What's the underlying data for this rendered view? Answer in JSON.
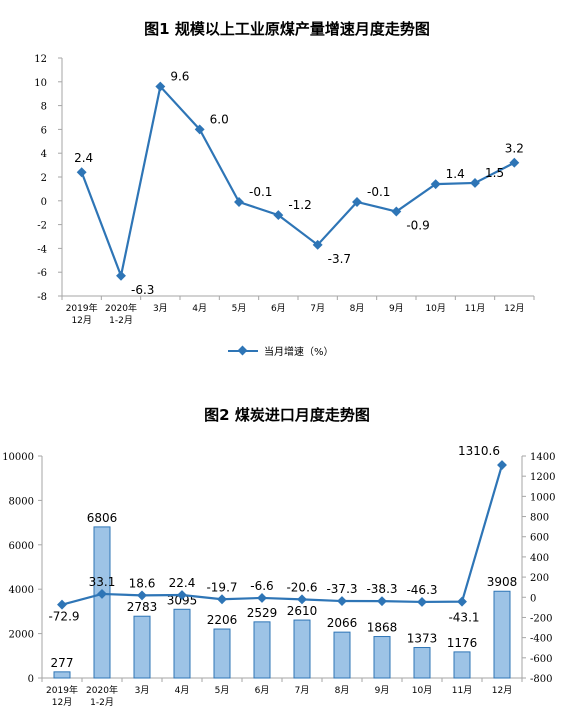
{
  "chart_data": [
    {
      "type": "line",
      "title": "图1  规模以上工业原煤产量增速月度走势图",
      "categories": [
        "2019年\n12月",
        "2020年\n1-2月",
        "3月",
        "4月",
        "5月",
        "6月",
        "7月",
        "8月",
        "9月",
        "10月",
        "11月",
        "12月"
      ],
      "series": [
        {
          "name": "当月增速（%）",
          "values": [
            2.4,
            -6.3,
            9.6,
            6.0,
            -0.1,
            -1.2,
            -3.7,
            -0.1,
            -0.9,
            1.4,
            1.5,
            3.2
          ],
          "labels": [
            "2.4",
            "-6.3",
            "9.6",
            "6.0",
            "-0.1",
            "-1.2",
            "-3.7",
            "-0.1",
            "-0.9",
            "1.4",
            "1.5",
            "3.2"
          ]
        }
      ],
      "ylim": [
        -8,
        12
      ],
      "yticks": [
        -8,
        -6,
        -4,
        -2,
        0,
        2,
        4,
        6,
        8,
        10,
        12
      ],
      "legend": "bottom",
      "colors": {
        "line": "#2e75b6"
      }
    },
    {
      "type": "bar",
      "title": "图2  煤炭进口月度走势图",
      "categories": [
        "2019年\n12月",
        "2020年\n1-2月",
        "3月",
        "4月",
        "5月",
        "6月",
        "7月",
        "8月",
        "9月",
        "10月",
        "11月",
        "12月"
      ],
      "series": [
        {
          "values": [
            277,
            6806,
            2783,
            3095,
            2206,
            2529,
            2610,
            2066,
            1868,
            1373,
            1176,
            3908
          ],
          "axis": "left"
        },
        {
          "values": [
            -72.9,
            33.1,
            18.6,
            22.4,
            -19.7,
            -6.6,
            -20.6,
            -37.3,
            -38.3,
            -46.3,
            -43.1,
            1310.6
          ],
          "axis": "right"
        }
      ],
      "ylim": [
        0,
        10000
      ],
      "yticks": [
        0,
        2000,
        4000,
        6000,
        8000,
        10000
      ],
      "y2lim": [
        -800,
        1400
      ],
      "y2ticks": [
        -800,
        -600,
        -400,
        -200,
        0,
        200,
        400,
        600,
        800,
        1000,
        1200,
        1400
      ],
      "colors": {
        "bar_fill": "#9dc3e6",
        "bar_stroke": "#2e75b6",
        "line": "#2e75b6"
      }
    }
  ]
}
